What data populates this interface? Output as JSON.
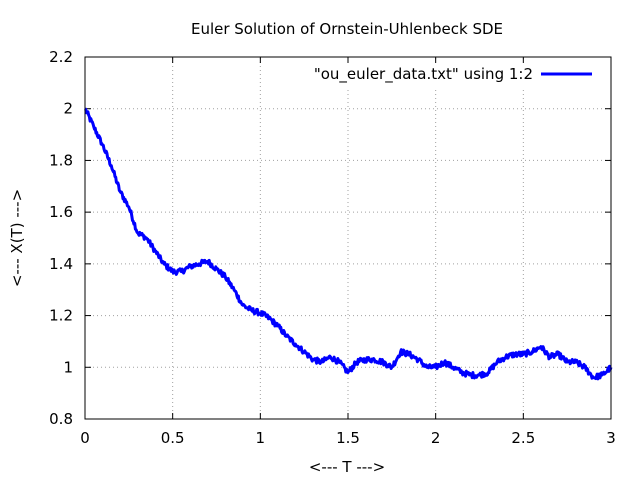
{
  "chart_data": {
    "type": "line",
    "title": "Euler Solution of Ornstein-Uhlenbeck SDE",
    "xlabel": "<--- T --->",
    "ylabel": "<--- X(T) --->",
    "xlim": [
      0,
      3
    ],
    "ylim": [
      0.8,
      2.2
    ],
    "x_ticks": [
      "0",
      "0.5",
      "1",
      "1.5",
      "2",
      "2.5",
      "3"
    ],
    "y_ticks": [
      "0.8",
      "1",
      "1.2",
      "1.4",
      "1.6",
      "1.8",
      "2",
      "2.2"
    ],
    "grid": true,
    "legend_position": "top-right",
    "series": [
      {
        "name": "\"ou_euler_data.txt\" using 1:2",
        "color": "#0000ff",
        "x": [
          0,
          0.05,
          0.1,
          0.15,
          0.2,
          0.25,
          0.3,
          0.35,
          0.4,
          0.45,
          0.5,
          0.55,
          0.6,
          0.65,
          0.7,
          0.75,
          0.8,
          0.85,
          0.9,
          0.95,
          1.0,
          1.05,
          1.1,
          1.15,
          1.2,
          1.25,
          1.3,
          1.35,
          1.4,
          1.45,
          1.5,
          1.55,
          1.6,
          1.65,
          1.7,
          1.75,
          1.8,
          1.85,
          1.9,
          1.95,
          2.0,
          2.05,
          2.1,
          2.15,
          2.2,
          2.25,
          2.3,
          2.35,
          2.4,
          2.45,
          2.5,
          2.55,
          2.6,
          2.65,
          2.7,
          2.75,
          2.8,
          2.85,
          2.9,
          2.95,
          3.0
        ],
        "y": [
          2.0,
          1.93,
          1.86,
          1.78,
          1.68,
          1.62,
          1.52,
          1.5,
          1.45,
          1.4,
          1.37,
          1.37,
          1.39,
          1.4,
          1.41,
          1.38,
          1.35,
          1.3,
          1.24,
          1.22,
          1.21,
          1.19,
          1.16,
          1.12,
          1.09,
          1.06,
          1.03,
          1.02,
          1.04,
          1.02,
          0.98,
          1.02,
          1.03,
          1.03,
          1.02,
          1.0,
          1.06,
          1.05,
          1.03,
          1.0,
          1.0,
          1.02,
          1.0,
          0.98,
          0.97,
          0.97,
          0.98,
          1.02,
          1.04,
          1.05,
          1.05,
          1.06,
          1.08,
          1.04,
          1.05,
          1.02,
          1.02,
          1.0,
          0.96,
          0.97,
          1.0
        ]
      }
    ]
  }
}
